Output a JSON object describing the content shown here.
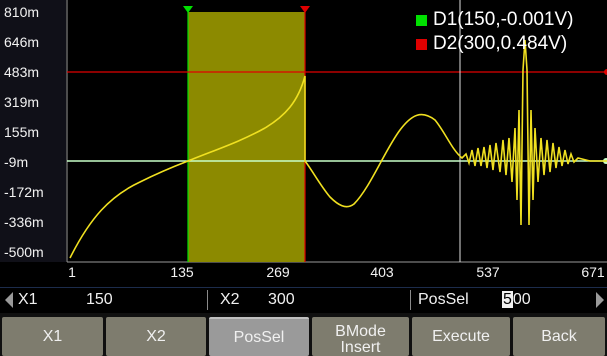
{
  "y_ticks": [
    "810m",
    "646m",
    "483m",
    "319m",
    "155m",
    "-9m",
    "-172m",
    "-336m",
    "-500m"
  ],
  "x_ticks": [
    "1",
    "135",
    "269",
    "403",
    "537",
    "671"
  ],
  "legend": [
    {
      "label": "D1(150,-0.001V)",
      "color": "#00e000"
    },
    {
      "label": "D2(300,0.484V)",
      "color": "#e00000"
    }
  ],
  "info": {
    "x1_label": "X1",
    "x1_value": "150",
    "x2_label": "X2",
    "x2_value": "300",
    "possel_label": "PosSel",
    "possel_value_hi": "5",
    "possel_value_rest": "00"
  },
  "softkeys": {
    "x1": "X1",
    "x2": "X2",
    "possel": "PosSel",
    "bmode_line1": "BMode",
    "bmode_line2": "Insert",
    "execute": "Execute",
    "back": "Back"
  },
  "colors": {
    "cursor_d1": "#00e000",
    "cursor_d2": "#e00000",
    "waveform": "#f0e020",
    "selection": "#8c8a00",
    "key": "#7e7c6e"
  }
}
